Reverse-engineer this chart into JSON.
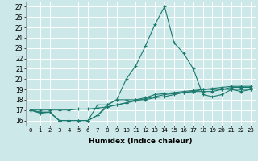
{
  "title": "",
  "xlabel": "Humidex (Indice chaleur)",
  "ylabel": "",
  "xlim": [
    -0.5,
    23.5
  ],
  "ylim": [
    15.5,
    27.5
  ],
  "yticks": [
    16,
    17,
    18,
    19,
    20,
    21,
    22,
    23,
    24,
    25,
    26,
    27
  ],
  "xticks": [
    0,
    1,
    2,
    3,
    4,
    5,
    6,
    7,
    8,
    9,
    10,
    11,
    12,
    13,
    14,
    15,
    16,
    17,
    18,
    19,
    20,
    21,
    22,
    23
  ],
  "background_color": "#cde8e8",
  "grid_color": "#ffffff",
  "line_color": "#1a7a6e",
  "lines": [
    [
      17.0,
      16.7,
      16.8,
      16.0,
      16.0,
      16.0,
      16.0,
      16.5,
      17.5,
      18.0,
      20.0,
      21.3,
      23.2,
      25.3,
      27.0,
      23.5,
      22.5,
      21.0,
      18.5,
      18.3,
      18.5,
      19.0,
      18.8,
      19.0
    ],
    [
      17.0,
      16.8,
      16.8,
      16.0,
      16.0,
      16.0,
      16.0,
      17.5,
      17.5,
      18.0,
      18.0,
      18.0,
      18.0,
      18.2,
      18.3,
      18.5,
      18.7,
      18.8,
      18.8,
      18.8,
      19.0,
      19.0,
      19.0,
      19.0
    ],
    [
      17.0,
      16.8,
      16.8,
      16.0,
      16.0,
      16.0,
      16.0,
      16.5,
      17.3,
      17.5,
      17.7,
      18.0,
      18.2,
      18.5,
      18.6,
      18.7,
      18.8,
      18.9,
      19.0,
      19.0,
      19.0,
      19.2,
      19.2,
      19.2
    ],
    [
      17.0,
      17.0,
      17.0,
      17.0,
      17.0,
      17.1,
      17.1,
      17.2,
      17.3,
      17.5,
      17.7,
      17.9,
      18.1,
      18.3,
      18.5,
      18.6,
      18.7,
      18.8,
      19.0,
      19.1,
      19.2,
      19.3,
      19.3,
      19.3
    ]
  ]
}
